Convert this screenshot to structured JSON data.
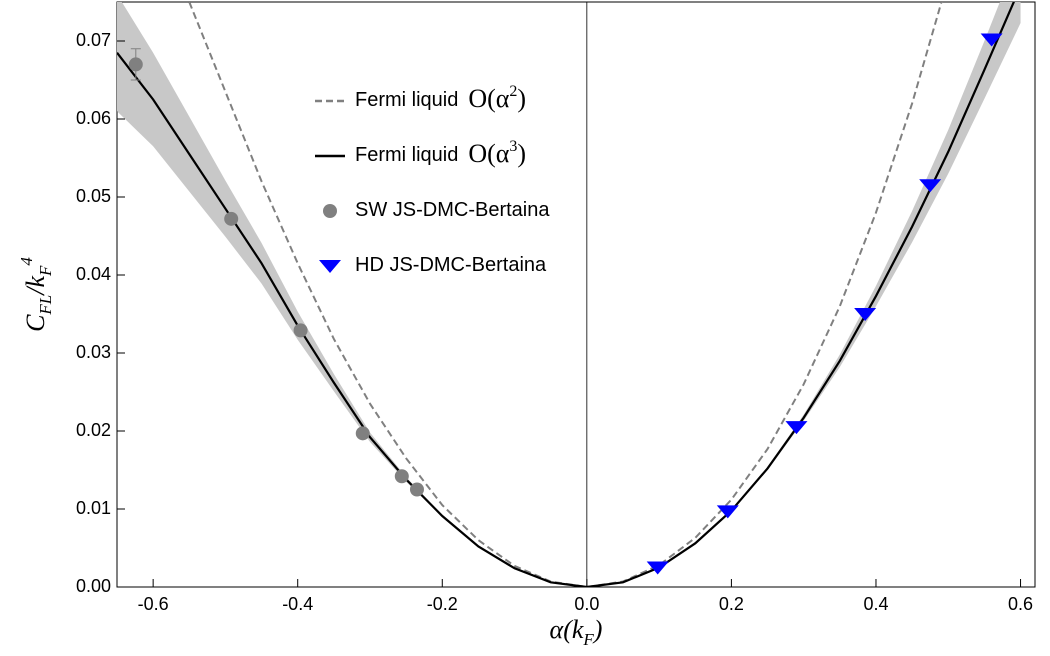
{
  "chart_data": {
    "type": "line",
    "x_label": [
      {
        "text": "α"
      },
      {
        "text": "(k"
      },
      {
        "text": "F",
        "shift": "sub"
      },
      {
        "text": ")"
      }
    ],
    "y_label": [
      {
        "text": "C"
      },
      {
        "text": "FL",
        "shift": "sub"
      },
      {
        "text": "/k"
      },
      {
        "text": "F",
        "shift": "sub"
      },
      {
        "text": "4",
        "shift": "super"
      }
    ],
    "xlim": [
      -0.65,
      0.62
    ],
    "ylim": [
      0,
      0.075
    ],
    "xticks": [
      -0.6,
      -0.4,
      -0.2,
      {
        "value": 0,
        "label": "0.0"
      },
      0.2,
      0.4,
      0.6
    ],
    "yticks": [
      {
        "value": 0,
        "label": "0.00"
      },
      {
        "value": 0.01,
        "label": "0.01"
      },
      {
        "value": 0.02,
        "label": "0.02"
      },
      {
        "value": 0.03,
        "label": "0.03"
      },
      {
        "value": 0.04,
        "label": "0.04"
      },
      {
        "value": 0.05,
        "label": "0.05"
      },
      {
        "value": 0.06,
        "label": "0.06"
      },
      {
        "value": 0.07,
        "label": "0.07"
      }
    ],
    "zero_line": true,
    "legend": "upper left",
    "band": {
      "color": "#c8c8c8",
      "x": [
        -0.65,
        -0.6,
        -0.55,
        -0.5,
        -0.45,
        -0.4,
        -0.35,
        -0.3,
        -0.25,
        -0.2,
        -0.15,
        -0.1,
        -0.05,
        0,
        0.05,
        0.1,
        0.15,
        0.2,
        0.25,
        0.3,
        0.35,
        0.4,
        0.45,
        0.5,
        0.55,
        0.6
      ],
      "lower": [
        0.061,
        0.0565,
        0.0507,
        0.0449,
        0.0389,
        0.0317,
        0.0251,
        0.0186,
        0.0135,
        0.009,
        0.0052,
        0.0024,
        0.0006,
        0,
        0.0006,
        0.0025,
        0.0056,
        0.0098,
        0.015,
        0.0213,
        0.0282,
        0.036,
        0.0442,
        0.053,
        0.0626,
        0.0723
      ],
      "upper": [
        0.076,
        0.0685,
        0.0603,
        0.0521,
        0.0441,
        0.0353,
        0.0273,
        0.0198,
        0.0141,
        0.0092,
        0.0052,
        0.0024,
        0.0006,
        0,
        0.0006,
        0.0025,
        0.0056,
        0.0098,
        0.0154,
        0.0221,
        0.0298,
        0.0386,
        0.0482,
        0.0586,
        0.07,
        0.0817
      ]
    },
    "series": [
      {
        "name": "Fermi liquid",
        "math": [
          "O(α",
          "2",
          ")"
        ],
        "mode": "dashed",
        "color": "#808080",
        "x": [
          -0.55,
          -0.5,
          -0.45,
          -0.4,
          -0.35,
          -0.3,
          -0.25,
          -0.2,
          -0.15,
          -0.1,
          -0.05,
          0,
          0.05,
          0.1,
          0.15,
          0.2,
          0.25,
          0.3,
          0.35,
          0.4,
          0.45,
          0.5
        ],
        "values": [
          0.075,
          0.0635,
          0.052,
          0.0415,
          0.0318,
          0.0235,
          0.0165,
          0.0105,
          0.006,
          0.0027,
          0.0007,
          0,
          0.0007,
          0.0028,
          0.0063,
          0.0112,
          0.0177,
          0.026,
          0.036,
          0.048,
          0.062,
          0.078
        ]
      },
      {
        "name": "Fermi liquid",
        "math": [
          "O(α",
          "3",
          ")"
        ],
        "mode": "solid",
        "color": "#000000",
        "x": [
          -0.65,
          -0.6,
          -0.55,
          -0.5,
          -0.45,
          -0.4,
          -0.35,
          -0.3,
          -0.25,
          -0.2,
          -0.15,
          -0.1,
          -0.05,
          0,
          0.05,
          0.1,
          0.15,
          0.2,
          0.25,
          0.3,
          0.35,
          0.4,
          0.45,
          0.5,
          0.55,
          0.6
        ],
        "values": [
          0.0685,
          0.0625,
          0.0555,
          0.0485,
          0.0415,
          0.0335,
          0.0262,
          0.0192,
          0.0138,
          0.0091,
          0.0052,
          0.0024,
          0.0006,
          0,
          0.0006,
          0.0025,
          0.0056,
          0.0098,
          0.0152,
          0.0217,
          0.029,
          0.0373,
          0.0462,
          0.0558,
          0.0663,
          0.077
        ]
      },
      {
        "name": "SW JS-DMC-Bertaina",
        "mode": "circle",
        "color": "#808080",
        "x": [
          -0.624,
          -0.492,
          -0.396,
          -0.31,
          -0.256,
          -0.235
        ],
        "values": [
          0.067,
          0.0472,
          0.0329,
          0.0197,
          0.0142,
          0.0125
        ],
        "errors": [
          0.002,
          null,
          null,
          null,
          null,
          null
        ]
      },
      {
        "name": "HD JS-DMC-Bertaina",
        "mode": "triangle-down",
        "color": "#0000ff",
        "x": [
          0.098,
          0.195,
          0.29,
          0.385,
          0.475,
          0.56
        ],
        "values": [
          0.0025,
          0.0097,
          0.0205,
          0.035,
          0.0515,
          0.0702
        ]
      }
    ]
  }
}
